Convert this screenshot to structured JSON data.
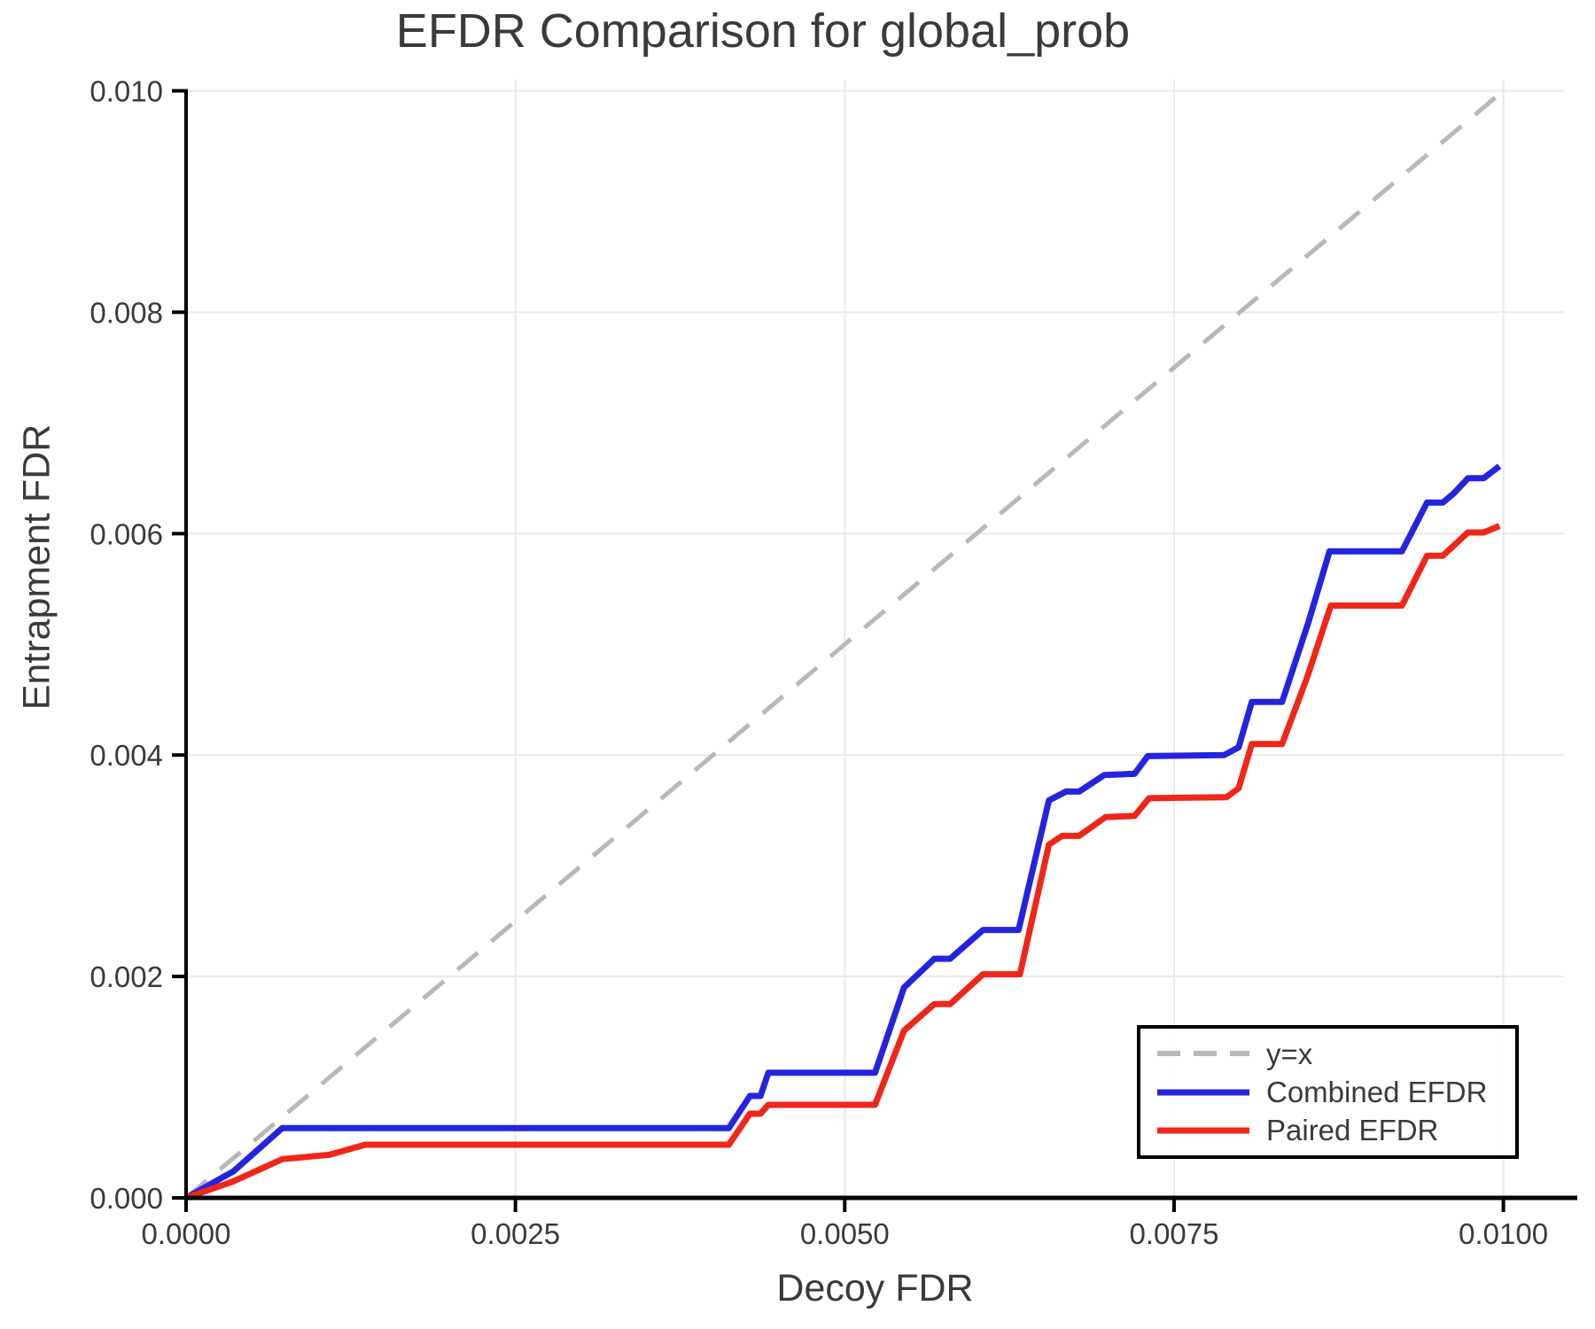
{
  "page": {
    "background": "#ffffff"
  },
  "chart_data": {
    "type": "line",
    "title": "EFDR Comparison for global_prob",
    "xlabel": "Decoy FDR",
    "ylabel": "Entrapment FDR",
    "xlim": [
      0,
      0.01046
    ],
    "ylim": [
      0,
      0.0101
    ],
    "grid": true,
    "legend_position": "lower right",
    "colors": {
      "grid": "#e9e9e9",
      "spine": "#000000",
      "text": "#3a3a3a",
      "identity": "#b8b8b8",
      "combined": "#2424e0",
      "paired": "#f02619"
    },
    "x_ticks": {
      "values": [
        0,
        0.0025,
        0.005,
        0.0075,
        0.01
      ],
      "labels": [
        "0.0000",
        "0.0025",
        "0.0050",
        "0.0075",
        "0.0100"
      ]
    },
    "y_ticks": {
      "values": [
        0,
        0.002,
        0.004,
        0.006,
        0.008,
        0.01
      ],
      "labels": [
        "0.000",
        "0.002",
        "0.004",
        "0.006",
        "0.008",
        "0.010"
      ]
    },
    "series": [
      {
        "name": "y=x",
        "style": "dashed",
        "color": "#b8b8b8",
        "width": 5,
        "points": [
          [
            0,
            0
          ],
          [
            0.01,
            0.01
          ]
        ]
      },
      {
        "name": "Combined EFDR",
        "style": "solid",
        "color": "#2424e0",
        "width": 7,
        "points": [
          [
            0.0,
            0.0
          ],
          [
            0.00036,
            0.00024
          ],
          [
            0.00073,
            0.00063
          ],
          [
            0.00412,
            0.00063
          ],
          [
            0.00428,
            0.00092
          ],
          [
            0.00436,
            0.00092
          ],
          [
            0.00442,
            0.00113
          ],
          [
            0.00523,
            0.00113
          ],
          [
            0.00545,
            0.0019
          ],
          [
            0.00568,
            0.00216
          ],
          [
            0.0058,
            0.00216
          ],
          [
            0.00605,
            0.00242
          ],
          [
            0.00632,
            0.00242
          ],
          [
            0.00655,
            0.00359
          ],
          [
            0.00668,
            0.00367
          ],
          [
            0.00678,
            0.00367
          ],
          [
            0.00697,
            0.00382
          ],
          [
            0.0072,
            0.00383
          ],
          [
            0.0073,
            0.00399
          ],
          [
            0.00788,
            0.004
          ],
          [
            0.00799,
            0.00407
          ],
          [
            0.00809,
            0.00448
          ],
          [
            0.00832,
            0.00448
          ],
          [
            0.00852,
            0.0052
          ],
          [
            0.00868,
            0.00584
          ],
          [
            0.00923,
            0.00584
          ],
          [
            0.00942,
            0.00628
          ],
          [
            0.00954,
            0.00628
          ],
          [
            0.00962,
            0.00636
          ],
          [
            0.0097,
            0.00646
          ],
          [
            0.00973,
            0.0065
          ],
          [
            0.00985,
            0.0065
          ],
          [
            0.00997,
            0.00661
          ]
        ]
      },
      {
        "name": "Paired EFDR",
        "style": "solid",
        "color": "#f02619",
        "width": 7,
        "points": [
          [
            0.0,
            0.0
          ],
          [
            0.00036,
            0.00015
          ],
          [
            0.00073,
            0.00035
          ],
          [
            0.00109,
            0.00039
          ],
          [
            0.00136,
            0.00048
          ],
          [
            0.00412,
            0.00048
          ],
          [
            0.00428,
            0.00076
          ],
          [
            0.00436,
            0.00076
          ],
          [
            0.00442,
            0.00084
          ],
          [
            0.00523,
            0.00084
          ],
          [
            0.00545,
            0.00151
          ],
          [
            0.00568,
            0.00175
          ],
          [
            0.0058,
            0.00175
          ],
          [
            0.00605,
            0.00202
          ],
          [
            0.00633,
            0.00202
          ],
          [
            0.00655,
            0.00319
          ],
          [
            0.00665,
            0.00327
          ],
          [
            0.00678,
            0.00327
          ],
          [
            0.00698,
            0.00344
          ],
          [
            0.0072,
            0.00345
          ],
          [
            0.00731,
            0.00361
          ],
          [
            0.0079,
            0.00362
          ],
          [
            0.00799,
            0.0037
          ],
          [
            0.00809,
            0.0041
          ],
          [
            0.00832,
            0.0041
          ],
          [
            0.00851,
            0.0047
          ],
          [
            0.00869,
            0.00535
          ],
          [
            0.00923,
            0.00535
          ],
          [
            0.00942,
            0.0058
          ],
          [
            0.00954,
            0.0058
          ],
          [
            0.00973,
            0.00601
          ],
          [
            0.00985,
            0.00601
          ],
          [
            0.00997,
            0.00607
          ]
        ]
      }
    ],
    "legend": {
      "entries": [
        {
          "label": "y=x",
          "style": "dashed",
          "color": "#b8b8b8"
        },
        {
          "label": "Combined EFDR",
          "style": "solid",
          "color": "#2424e0"
        },
        {
          "label": "Paired EFDR",
          "style": "solid",
          "color": "#f02619"
        }
      ]
    }
  }
}
